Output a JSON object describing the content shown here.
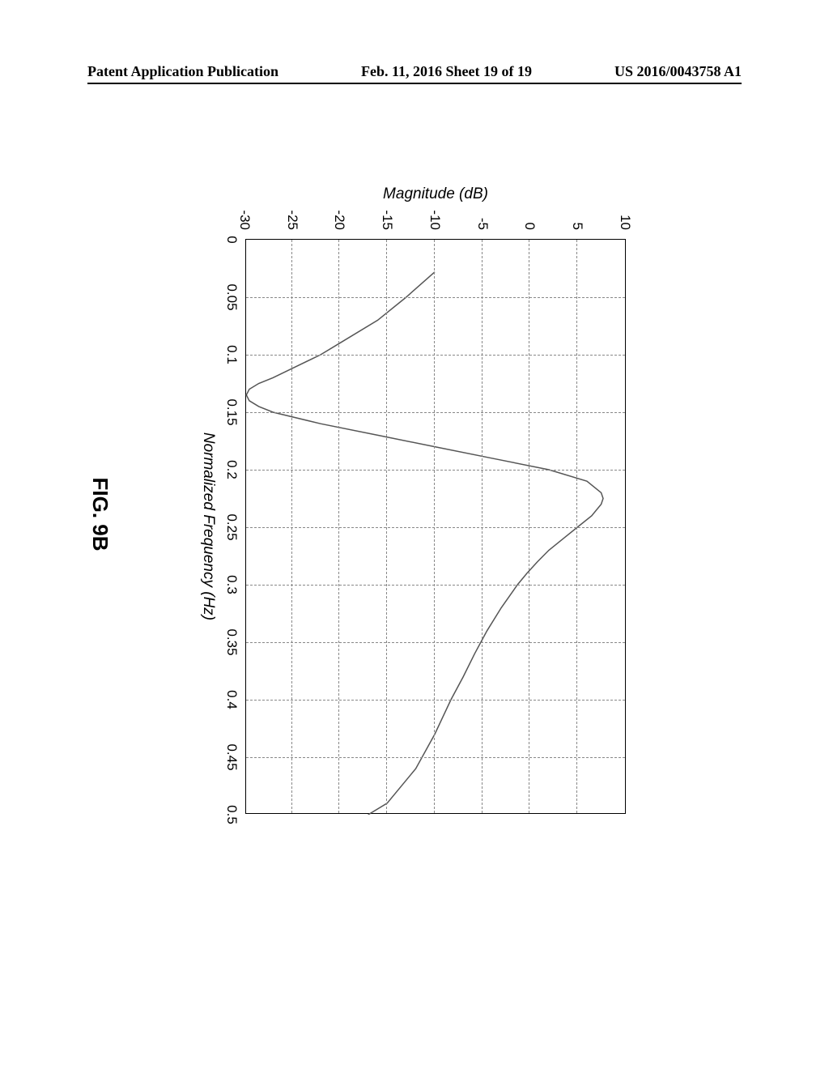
{
  "header": {
    "left": "Patent Application Publication",
    "center": "Feb. 11, 2016  Sheet 19 of 19",
    "right": "US 2016/0043758 A1"
  },
  "chart": {
    "type": "line",
    "xlabel": "Normalized Frequency (Hz)",
    "ylabel": "Magnitude (dB)",
    "xlim": [
      0,
      0.5
    ],
    "ylim": [
      -30,
      10
    ],
    "xticks": [
      0,
      0.05,
      0.1,
      0.15,
      0.2,
      0.25,
      0.3,
      0.35,
      0.4,
      0.45,
      0.5
    ],
    "yticks": [
      -30,
      -25,
      -20,
      -15,
      -10,
      -5,
      0,
      5,
      10
    ],
    "grid_color": "#888888",
    "line_color": "#555555",
    "background_color": "#ffffff",
    "label_fontsize": 19,
    "tick_fontsize": 17,
    "xlabel_fontstyle": "italic",
    "ylabel_fontstyle": "italic",
    "line_width": 1.5,
    "data": {
      "x": [
        0.028,
        0.05,
        0.07,
        0.09,
        0.1,
        0.11,
        0.12,
        0.125,
        0.13,
        0.135,
        0.14,
        0.145,
        0.15,
        0.16,
        0.17,
        0.18,
        0.19,
        0.2,
        0.21,
        0.22,
        0.225,
        0.23,
        0.24,
        0.25,
        0.26,
        0.27,
        0.28,
        0.29,
        0.3,
        0.32,
        0.34,
        0.36,
        0.38,
        0.4,
        0.43,
        0.46,
        0.49,
        0.5
      ],
      "y": [
        -10,
        -13,
        -16,
        -20,
        -22,
        -24.5,
        -27,
        -28.5,
        -29.5,
        -29.8,
        -29.5,
        -28.5,
        -27,
        -22,
        -16,
        -10,
        -4,
        2,
        6,
        7.5,
        7.7,
        7.5,
        6.5,
        5,
        3.5,
        2,
        0.8,
        -0.3,
        -1.3,
        -3,
        -4.5,
        -5.8,
        -7,
        -8.3,
        -10,
        -12,
        -15,
        -17
      ]
    }
  },
  "figure_caption": "FIG. 9B"
}
